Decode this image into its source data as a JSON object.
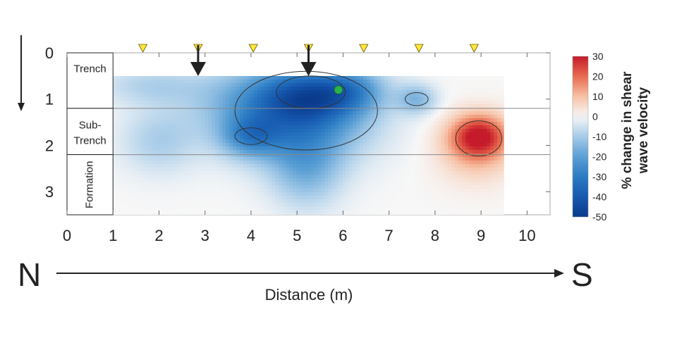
{
  "chart_data": {
    "type": "heatmap",
    "xlabel": "Distance (m)",
    "xlim": [
      0,
      10.5
    ],
    "ylim": [
      0,
      3.5
    ],
    "y_inverted": true,
    "x_ticks": [
      0,
      1,
      2,
      3,
      4,
      5,
      6,
      7,
      8,
      9,
      10
    ],
    "y_ticks": [
      0,
      1,
      2,
      3
    ],
    "direction": {
      "start": "N",
      "end": "S"
    },
    "sensor_markers_x": [
      1.65,
      2.85,
      4.05,
      5.25,
      6.45,
      7.65,
      8.85
    ],
    "down_arrows_x": [
      2.85,
      5.25
    ],
    "green_point": {
      "x": 5.9,
      "y": 0.8
    },
    "layers": [
      {
        "label": "Trench",
        "top": 0,
        "bottom": 1.2
      },
      {
        "label": "Sub-Trench",
        "top": 1.2,
        "bottom": 2.2
      },
      {
        "label": "Formation",
        "top": 2.2,
        "bottom": 3.5
      }
    ],
    "field": {
      "x_range": [
        1.0,
        9.5
      ],
      "y_range": [
        0.5,
        3.5
      ],
      "features": [
        {
          "x": 5.3,
          "y": 0.9,
          "sx": 0.85,
          "sy": 0.45,
          "amp": -34
        },
        {
          "x": 5.0,
          "y": 1.6,
          "sx": 1.1,
          "sy": 0.6,
          "amp": -20
        },
        {
          "x": 5.2,
          "y": 2.5,
          "sx": 0.55,
          "sy": 0.6,
          "amp": -14
        },
        {
          "x": 4.0,
          "y": 1.8,
          "sx": 0.45,
          "sy": 0.3,
          "amp": -18
        },
        {
          "x": 6.2,
          "y": 0.8,
          "sx": 0.5,
          "sy": 0.3,
          "amp": -12
        },
        {
          "x": 7.6,
          "y": 1.0,
          "sx": 0.3,
          "sy": 0.22,
          "amp": -14
        },
        {
          "x": 3.8,
          "y": 1.0,
          "sx": 0.9,
          "sy": 0.5,
          "amp": -10
        },
        {
          "x": 2.0,
          "y": 1.9,
          "sx": 0.6,
          "sy": 0.5,
          "amp": -9
        },
        {
          "x": 1.8,
          "y": 0.7,
          "sx": 0.8,
          "sy": 0.3,
          "amp": -8
        },
        {
          "x": 8.95,
          "y": 1.8,
          "sx": 0.42,
          "sy": 0.32,
          "amp": 26
        },
        {
          "x": 8.9,
          "y": 2.1,
          "sx": 0.6,
          "sy": 0.5,
          "amp": 10
        }
      ]
    },
    "colorbar": {
      "label_line1": "% change in shear",
      "label_line2": "wave velocity",
      "min": -50,
      "max": 30,
      "tick_values": [
        30,
        20,
        10,
        0,
        -10,
        -20,
        -30,
        -40,
        -50
      ],
      "tick_labels": [
        "30",
        "20",
        "10",
        "0",
        "-10",
        "-20",
        "-30",
        "-40",
        "-50"
      ],
      "colors": {
        "-50": "#0a3a8c",
        "-40": "#1659b0",
        "-30": "#2b7bc4",
        "-20": "#5a9fd4",
        "-10": "#a6cbe8",
        "0": "#f7f7f7",
        "10": "#f7c2a6",
        "20": "#e86b4e",
        "30": "#c51b2a"
      }
    },
    "marker_color": "#ffe63c",
    "green_color": "#2bb24c"
  }
}
